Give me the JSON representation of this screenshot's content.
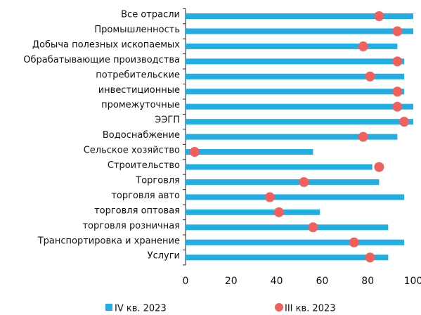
{
  "chart_data": {
    "type": "bar-dot",
    "categories": [
      "Все отрасли",
      "Промышленность",
      "Добыча полезных ископаемых",
      "Обрабатывающие производства",
      "потребительские",
      "инвестиционные",
      "промежуточные",
      "ЭЭГП",
      "Водоснабжение",
      "Сельское хозяйство",
      "Строительство",
      "Торговля",
      "торговля авто",
      "торговля оптовая",
      "торговля розничная",
      "Транспортировка и хранение",
      "Услуги"
    ],
    "series": [
      {
        "name": "IV кв. 2023",
        "color": "#21aee4",
        "values": [
          100,
          100,
          93,
          96,
          96,
          96,
          100,
          100,
          93,
          56,
          82,
          85,
          96,
          59,
          89,
          96,
          89
        ]
      },
      {
        "name": "III кв. 2023",
        "color": "#f2605e",
        "values": [
          85,
          93,
          78,
          93,
          81,
          93,
          93,
          96,
          78,
          4,
          85,
          52,
          37,
          41,
          56,
          74,
          81
        ]
      }
    ],
    "xlim": [
      0,
      100
    ],
    "xticks": [
      0,
      20,
      40,
      60,
      80,
      100
    ],
    "legend": "bottom"
  }
}
